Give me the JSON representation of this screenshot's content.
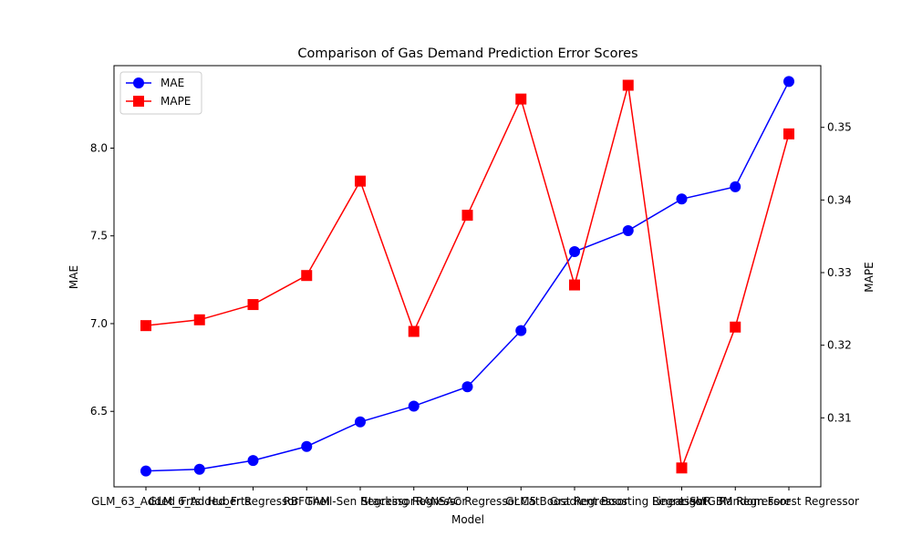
{
  "chart_data": {
    "type": "line",
    "title": "Comparison of Gas Demand Prediction Error Scores",
    "xlabel": "Model",
    "ylabel_left": "MAE",
    "ylabel_right": "MAPE",
    "categories": [
      "GLM_63_Added_Frts",
      "GLM_6_Added_Frts",
      "Huber Regressor",
      "RBFGAM",
      "Theil-Sen Regressor",
      "Stacking Regressor",
      "RANSAC Regressor",
      "GLM5",
      "CatBoost Regressor",
      "Gradient Boosting Regressor",
      "Linear SVR",
      "LightGBM Regressor",
      "Random Forest Regressor"
    ],
    "series": [
      {
        "name": "MAE",
        "axis": "left",
        "color": "#0000ff",
        "marker": "circle",
        "values": [
          6.16,
          6.17,
          6.22,
          6.3,
          6.44,
          6.53,
          6.64,
          6.96,
          7.41,
          7.53,
          7.71,
          7.78,
          8.38
        ]
      },
      {
        "name": "MAPE",
        "axis": "right",
        "color": "#ff0000",
        "marker": "square",
        "values": [
          0.3227,
          0.3235,
          0.3256,
          0.3296,
          0.3426,
          0.3219,
          0.3379,
          0.3539,
          0.3283,
          0.3558,
          0.3031,
          0.3225,
          0.3491
        ]
      }
    ],
    "ylim_left": [
      6.07,
      8.47
    ],
    "ylim_right": [
      0.3005,
      0.3585
    ],
    "yticks_left": [
      "6.5",
      "7.0",
      "7.5",
      "8.0"
    ],
    "yticks_left_values": [
      6.5,
      7.0,
      7.5,
      8.0
    ],
    "yticks_right": [
      "0.31",
      "0.32",
      "0.33",
      "0.34",
      "0.35"
    ],
    "yticks_right_values": [
      0.31,
      0.32,
      0.33,
      0.34,
      0.35
    ],
    "grid": false,
    "legend": {
      "placement": "top-left",
      "entries": [
        "MAE",
        "MAPE"
      ]
    }
  }
}
